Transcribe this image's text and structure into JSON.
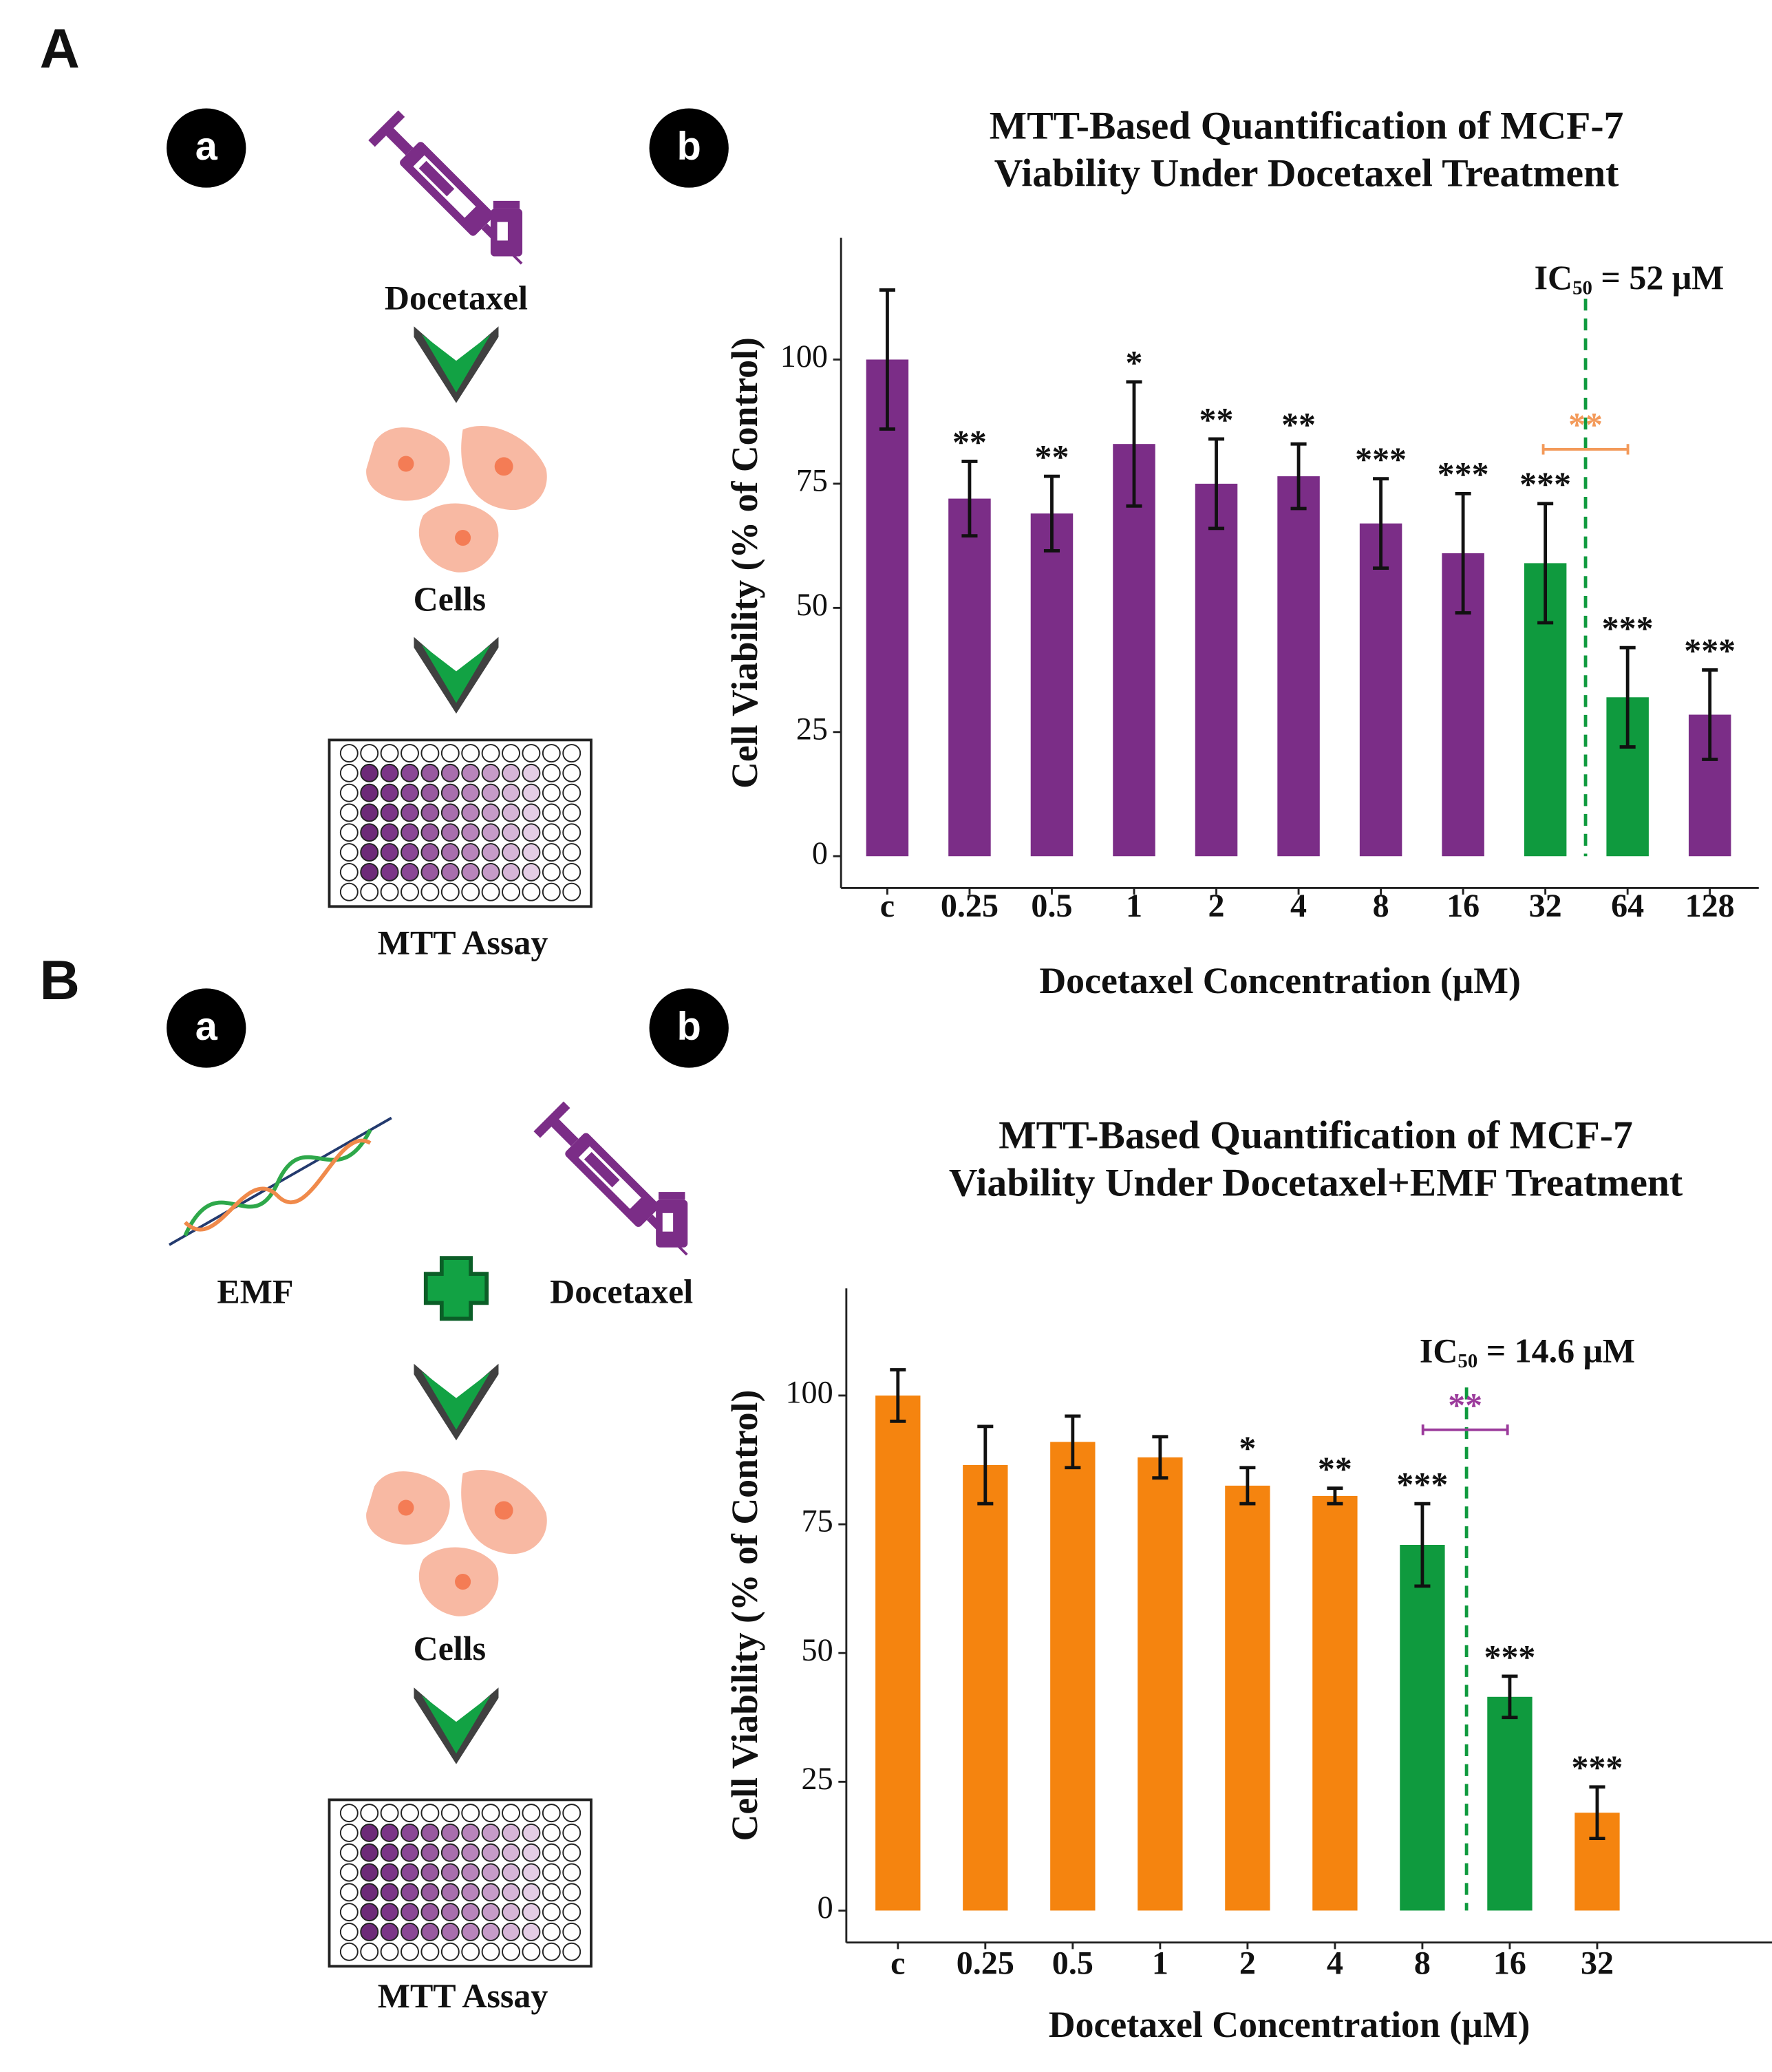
{
  "figure": {
    "panel_A": "A",
    "panel_B": "B",
    "sub_a": "a",
    "sub_b": "b",
    "docetaxel": "Docetaxel",
    "cells": "Cells",
    "mtt": "MTT Assay",
    "emf": "EMF"
  },
  "chart_data": [
    {
      "type": "bar",
      "title": [
        "MTT-Based Quantification of MCF-7",
        "Viability Under Docetaxel Treatment"
      ],
      "x_label": "Docetaxel Concentration (μM)",
      "y_label": "Cell Viability (% of Control)",
      "categories": [
        "c",
        "0.25",
        "0.5",
        "1",
        "2",
        "4",
        "8",
        "16",
        "32",
        "64",
        "128"
      ],
      "values": [
        100,
        72,
        69,
        83,
        75,
        76.5,
        67,
        61,
        59,
        32,
        28.5
      ],
      "errors": [
        14,
        7.5,
        7.5,
        12.5,
        9,
        6.5,
        9,
        12,
        12,
        10,
        9
      ],
      "significance": [
        null,
        "**",
        "**",
        "*",
        "**",
        "**",
        "***",
        "***",
        "***",
        "***",
        "***"
      ],
      "colors": [
        "#7b2d87",
        "#7b2d87",
        "#7b2d87",
        "#7b2d87",
        "#7b2d87",
        "#7b2d87",
        "#7b2d87",
        "#7b2d87",
        "#0f9a3e",
        "#0f9a3e",
        "#7b2d87"
      ],
      "ylim": [
        -6.4,
        124.5
      ],
      "yticks": [
        0,
        25,
        50,
        75,
        100
      ],
      "ic50": {
        "prefix": "IC",
        "subscript": "50",
        "text": " = 52 μM"
      },
      "comparison": {
        "label": "**",
        "color": "#f39a5a"
      },
      "threshold_color": "#0f9a3e"
    },
    {
      "type": "bar",
      "title": [
        "MTT-Based Quantification of MCF-7",
        "Viability Under Docetaxel+EMF Treatment"
      ],
      "x_label": "Docetaxel Concentration (μM)",
      "y_label": "Cell Viability (% of Control)",
      "categories": [
        "c",
        "0.25",
        "0.5",
        "1",
        "2",
        "4",
        "8",
        "16",
        "32"
      ],
      "values": [
        100,
        86.5,
        91,
        88,
        82.5,
        80.5,
        71,
        41.5,
        19
      ],
      "errors": [
        5,
        7.5,
        5,
        4,
        3.5,
        1.5,
        8,
        4,
        5
      ],
      "significance": [
        null,
        null,
        null,
        null,
        "*",
        "**",
        "***",
        "***",
        "***"
      ],
      "colors": [
        "#f5840f",
        "#f5840f",
        "#f5840f",
        "#f5840f",
        "#f5840f",
        "#f5840f",
        "#0f9a3e",
        "#0f9a3e",
        "#f5840f"
      ],
      "ylim": [
        -6.2,
        120.8
      ],
      "yticks": [
        0,
        25,
        50,
        75,
        100
      ],
      "ic50": {
        "prefix": "IC",
        "subscript": "50",
        "text": " = 14.6 μM"
      },
      "comparison": {
        "label": "**",
        "color": "#9b3a9b"
      },
      "threshold_color": "#0f9a3e"
    }
  ]
}
